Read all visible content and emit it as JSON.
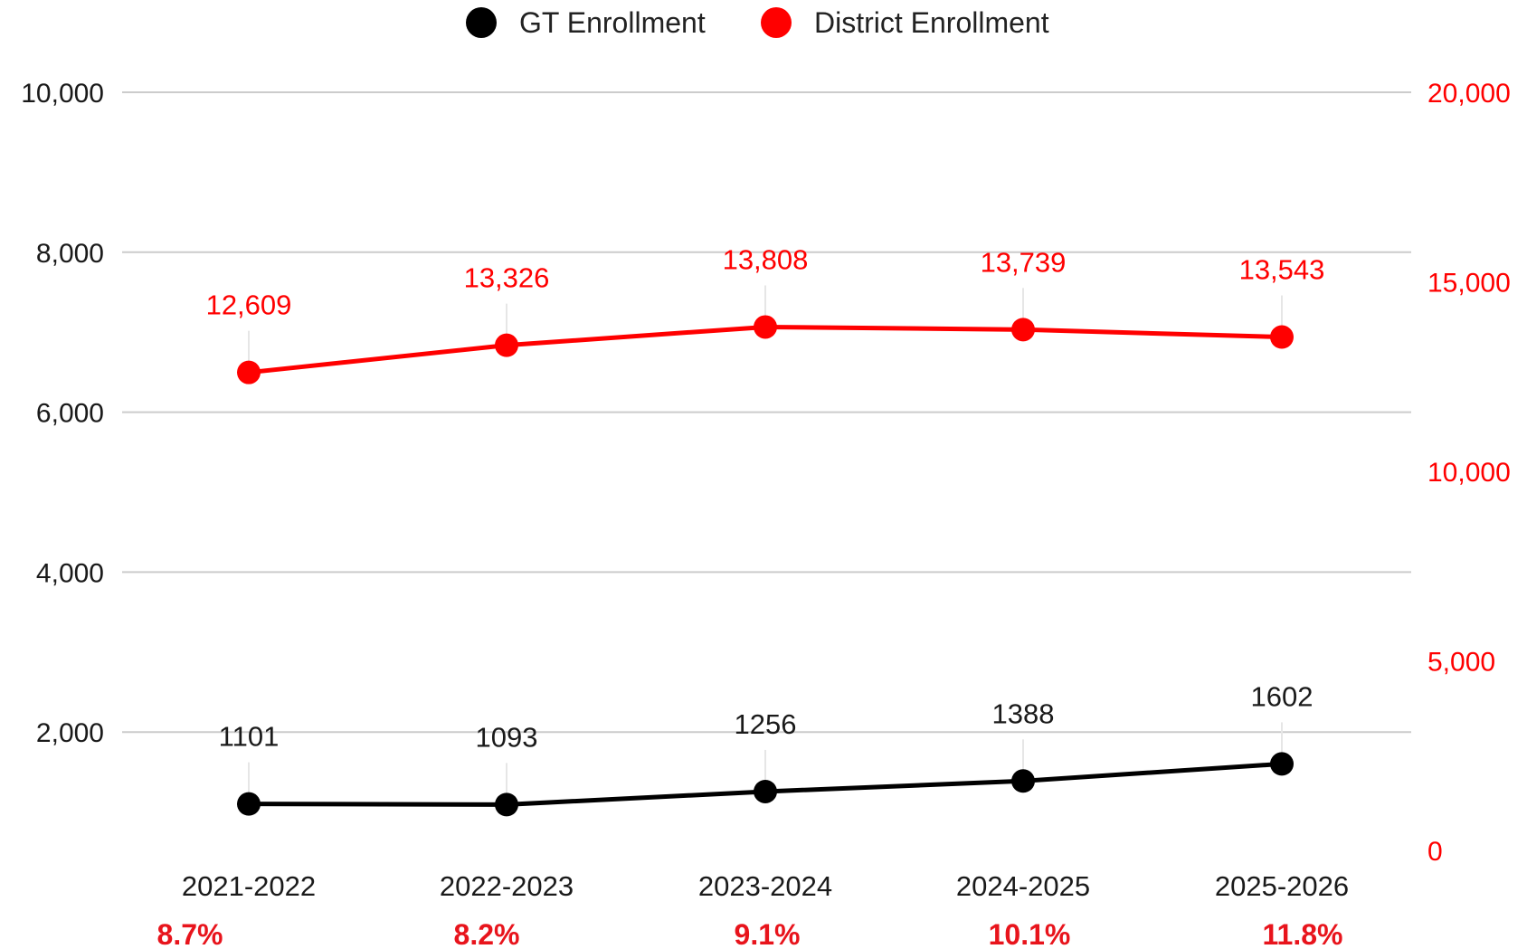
{
  "chart_data": {
    "type": "line",
    "title": "",
    "xlabel": "",
    "ylabel": "",
    "categories": [
      "2021-2022",
      "2022-2023",
      "2023-2024",
      "2024-2025",
      "2025-2026"
    ],
    "series": [
      {
        "name": "GT Enrollment",
        "axis": "left",
        "color": "#000000",
        "values": [
          1101,
          1093,
          1256,
          1388,
          1602
        ],
        "value_labels": [
          "1101",
          "1093",
          "1256",
          "1388",
          "1602"
        ]
      },
      {
        "name": "District Enrollment",
        "axis": "right",
        "color": "#ff0000",
        "values": [
          12609,
          13326,
          13808,
          13739,
          13543
        ],
        "value_labels": [
          "12,609",
          "13,326",
          "13,808",
          "13,739",
          "13,543"
        ]
      }
    ],
    "y_left": {
      "ylim": [
        0,
        10000
      ],
      "ticks": [
        2000,
        4000,
        6000,
        8000,
        10000
      ],
      "tick_labels": [
        "2,000",
        "4,000",
        "6,000",
        "8,000",
        "10,000"
      ]
    },
    "y_right": {
      "ylim": [
        0,
        20000
      ],
      "ticks": [
        0,
        5000,
        10000,
        15000,
        20000
      ],
      "tick_labels": [
        "0",
        "5,000",
        "10,000",
        "15,000",
        "20,000"
      ],
      "color": "#ff0000"
    },
    "grid": true,
    "legend": "top-center",
    "percent_labels": [
      "8.7%",
      "8.2%",
      "9.1%",
      "10.1%",
      "11.8%"
    ],
    "percent_color": "#e8141c"
  }
}
